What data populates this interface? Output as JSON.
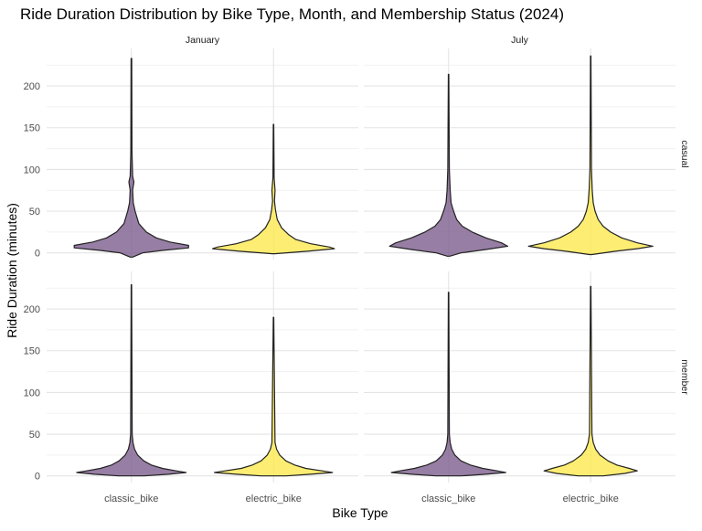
{
  "chart_data": {
    "type": "violin",
    "title": "Ride Duration Distribution by Bike Type, Month, and Membership Status (2024)",
    "xlabel": "Bike Type",
    "ylabel": "Ride Duration (minutes)",
    "categories": [
      "classic_bike",
      "electric_bike"
    ],
    "facet_columns": [
      "January",
      "July"
    ],
    "facet_rows": [
      "casual",
      "member"
    ],
    "ylim": [
      -8,
      245
    ],
    "y_ticks": [
      0,
      50,
      100,
      150,
      200
    ],
    "colors": {
      "classic_bike": "#7a5a8a",
      "electric_bike": "#fde84a",
      "grid_major": "#e4e4e4",
      "grid_minor": "#f1f1f1",
      "outline": "#222222"
    },
    "panels": [
      {
        "column": "January",
        "row": "casual",
        "violins": [
          {
            "category": "classic_bike",
            "min": -5,
            "max": 233,
            "width_profile": [
              [
                -5,
                0.02
              ],
              [
                0,
                0.18
              ],
              [
                3,
                0.5
              ],
              [
                6,
                0.92
              ],
              [
                9,
                0.92
              ],
              [
                13,
                0.62
              ],
              [
                18,
                0.4
              ],
              [
                25,
                0.24
              ],
              [
                35,
                0.12
              ],
              [
                50,
                0.06
              ],
              [
                60,
                0.03
              ],
              [
                75,
                0.02
              ],
              [
                85,
                0.04
              ],
              [
                92,
                0.02
              ],
              [
                120,
                0.01
              ],
              [
                233,
                0.005
              ]
            ]
          },
          {
            "category": "electric_bike",
            "min": -1,
            "max": 154,
            "width_profile": [
              [
                -1,
                0.02
              ],
              [
                2,
                0.55
              ],
              [
                5,
                0.98
              ],
              [
                7,
                0.9
              ],
              [
                11,
                0.6
              ],
              [
                16,
                0.36
              ],
              [
                22,
                0.24
              ],
              [
                30,
                0.13
              ],
              [
                40,
                0.06
              ],
              [
                52,
                0.03
              ],
              [
                62,
                0.015
              ],
              [
                75,
                0.025
              ],
              [
                90,
                0.01
              ],
              [
                154,
                0.004
              ]
            ]
          }
        ]
      },
      {
        "column": "July",
        "row": "casual",
        "violins": [
          {
            "category": "classic_bike",
            "min": -4,
            "max": 214,
            "width_profile": [
              [
                -4,
                0.02
              ],
              [
                0,
                0.2
              ],
              [
                4,
                0.6
              ],
              [
                8,
                0.95
              ],
              [
                12,
                0.85
              ],
              [
                18,
                0.6
              ],
              [
                25,
                0.38
              ],
              [
                32,
                0.22
              ],
              [
                40,
                0.13
              ],
              [
                50,
                0.08
              ],
              [
                60,
                0.04
              ],
              [
                75,
                0.025
              ],
              [
                100,
                0.012
              ],
              [
                214,
                0.004
              ]
            ]
          },
          {
            "category": "electric_bike",
            "min": -2,
            "max": 236,
            "width_profile": [
              [
                -2,
                0.02
              ],
              [
                2,
                0.4
              ],
              [
                5,
                0.75
              ],
              [
                8,
                1.0
              ],
              [
                12,
                0.75
              ],
              [
                18,
                0.5
              ],
              [
                25,
                0.32
              ],
              [
                32,
                0.2
              ],
              [
                40,
                0.12
              ],
              [
                50,
                0.07
              ],
              [
                60,
                0.04
              ],
              [
                75,
                0.025
              ],
              [
                100,
                0.012
              ],
              [
                236,
                0.004
              ]
            ]
          }
        ]
      },
      {
        "column": "January",
        "row": "member",
        "violins": [
          {
            "category": "classic_bike",
            "min": 0,
            "max": 229,
            "width_profile": [
              [
                0,
                0.2
              ],
              [
                2,
                0.6
              ],
              [
                4,
                0.88
              ],
              [
                6,
                0.72
              ],
              [
                9,
                0.5
              ],
              [
                13,
                0.32
              ],
              [
                18,
                0.2
              ],
              [
                25,
                0.1
              ],
              [
                32,
                0.05
              ],
              [
                40,
                0.025
              ],
              [
                50,
                0.012
              ],
              [
                229,
                0.004
              ]
            ]
          },
          {
            "category": "electric_bike",
            "min": 0,
            "max": 190,
            "width_profile": [
              [
                0,
                0.2
              ],
              [
                2,
                0.6
              ],
              [
                4,
                0.95
              ],
              [
                6,
                0.78
              ],
              [
                9,
                0.52
              ],
              [
                13,
                0.34
              ],
              [
                18,
                0.2
              ],
              [
                25,
                0.1
              ],
              [
                32,
                0.05
              ],
              [
                40,
                0.025
              ],
              [
                190,
                0.004
              ]
            ]
          }
        ]
      },
      {
        "column": "July",
        "row": "member",
        "violins": [
          {
            "category": "classic_bike",
            "min": 0,
            "max": 220,
            "width_profile": [
              [
                0,
                0.2
              ],
              [
                2,
                0.6
              ],
              [
                4,
                0.92
              ],
              [
                6,
                0.78
              ],
              [
                9,
                0.55
              ],
              [
                13,
                0.35
              ],
              [
                18,
                0.2
              ],
              [
                25,
                0.1
              ],
              [
                32,
                0.05
              ],
              [
                40,
                0.025
              ],
              [
                50,
                0.012
              ],
              [
                220,
                0.004
              ]
            ]
          },
          {
            "category": "electric_bike",
            "min": 0,
            "max": 227,
            "width_profile": [
              [
                0,
                0.2
              ],
              [
                3,
                0.55
              ],
              [
                6,
                0.75
              ],
              [
                9,
                0.62
              ],
              [
                13,
                0.42
              ],
              [
                18,
                0.28
              ],
              [
                25,
                0.15
              ],
              [
                32,
                0.08
              ],
              [
                40,
                0.04
              ],
              [
                50,
                0.02
              ],
              [
                227,
                0.004
              ]
            ]
          }
        ]
      }
    ]
  }
}
